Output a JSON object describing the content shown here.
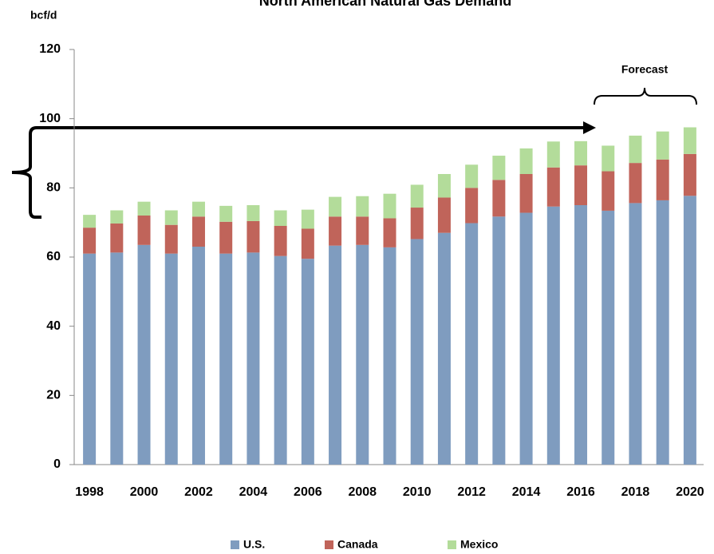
{
  "chart_data": {
    "type": "stacked_bar",
    "title": "North American Natural Gas Demand",
    "y_label": "bcf/d",
    "annotation": "Forecast",
    "categories": [
      "1998",
      null,
      "2000",
      null,
      "2002",
      null,
      "2004",
      null,
      "2006",
      null,
      "2008",
      null,
      "2010",
      null,
      "2012",
      null,
      "2014",
      null,
      "2016",
      null,
      "2018",
      null,
      "2020"
    ],
    "series": [
      {
        "name": "U.S.",
        "color": "#7f9cbf",
        "values": [
          61,
          61.3,
          63.5,
          61,
          63,
          61,
          61.3,
          60.3,
          59.5,
          63.3,
          63.5,
          62.8,
          65.2,
          67,
          69.8,
          71.7,
          72.8,
          74.6,
          75,
          73.4,
          75.6,
          76.4,
          77.7
        ]
      },
      {
        "name": "Canada",
        "color": "#c0645a",
        "values": [
          7.5,
          8.4,
          8.5,
          8.3,
          8.7,
          9.2,
          9.1,
          8.7,
          8.7,
          8.4,
          8.2,
          8.4,
          9.1,
          10.2,
          10.2,
          10.6,
          11.2,
          11.3,
          11.5,
          11.4,
          11.6,
          11.8,
          12.1
        ]
      },
      {
        "name": "Mexico",
        "color": "#b3dc9a",
        "values": [
          3.7,
          3.8,
          4,
          4.2,
          4.3,
          4.6,
          4.6,
          4.5,
          5.5,
          5.7,
          5.9,
          7.1,
          6.6,
          6.8,
          6.7,
          7,
          7.4,
          7.5,
          7,
          7.4,
          7.9,
          8.1,
          7.7
        ]
      }
    ],
    "ylim": [
      0,
      120
    ],
    "yticks": [
      0,
      20,
      40,
      60,
      80,
      100,
      120
    ]
  }
}
